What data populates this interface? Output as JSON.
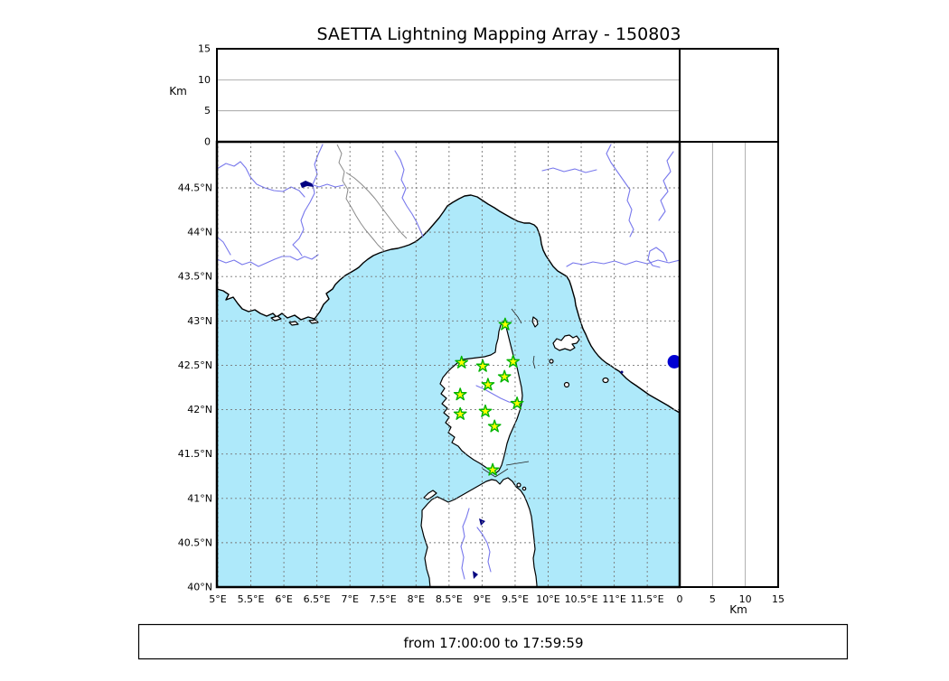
{
  "title": "SAETTA Lightning Mapping Array - 150803",
  "time_label": "from 17:00:00 to 17:59:59",
  "axes": {
    "altitude_left": {
      "label": "Km",
      "ticks": [
        "0",
        "5",
        "10",
        "15"
      ]
    },
    "altitude_bottom": {
      "label": "Km",
      "ticks": [
        "0",
        "5",
        "10",
        "15"
      ]
    },
    "latitude_ticks": [
      "44.5°N",
      "44°N",
      "43.5°N",
      "43°N",
      "42.5°N",
      "42°N",
      "41.5°N",
      "41°N",
      "40.5°N",
      "40°N"
    ],
    "longitude_ticks": [
      "5°E",
      "5.5°E",
      "6°E",
      "6.5°E",
      "7°E",
      "7.5°E",
      "8°E",
      "8.5°E",
      "9°E",
      "9.5°E",
      "10°E",
      "10.5°E",
      "11°E",
      "11.5°E"
    ]
  },
  "colors": {
    "sea": "#aee9fa",
    "river": "#7878ec",
    "border_line": "#8a8a8a",
    "grid": "#777777",
    "station_fill": "#ffff00",
    "station_edge": "#00b400",
    "source_dot": "#0000d2",
    "lake": "#000080"
  },
  "chart_data": {
    "type": "scatter",
    "title": "SAETTA Lightning Mapping Array - 150803",
    "annotation": "from 17:00:00 to 17:59:59",
    "panels": {
      "map": {
        "xlim": [
          5,
          12
        ],
        "ylim": [
          40,
          45
        ],
        "xticks": [
          5,
          5.5,
          6,
          6.5,
          7,
          7.5,
          8,
          8.5,
          9,
          9.5,
          10,
          10.5,
          11,
          11.5
        ],
        "yticks": [
          44.5,
          44,
          43.5,
          43,
          42.5,
          42,
          41.5,
          41,
          40.5,
          40
        ],
        "grid": true,
        "region": "Corsica / NW Mediterranean"
      },
      "altitude_top": {
        "ylabel": "Km",
        "ylim": [
          0,
          15
        ],
        "yticks": [
          0,
          5,
          10,
          15
        ]
      },
      "altitude_right": {
        "xlabel": "Km",
        "xlim": [
          0,
          15
        ],
        "xticks": [
          0,
          5,
          10,
          15
        ]
      }
    },
    "series": [
      {
        "name": "lma-stations",
        "marker": "star",
        "x": [
          9.35,
          8.69,
          9.01,
          9.47,
          9.34,
          9.09,
          8.67,
          9.05,
          8.67,
          9.53,
          9.19,
          9.16
        ],
        "y": [
          42.96,
          42.53,
          42.49,
          42.54,
          42.37,
          42.28,
          42.17,
          41.98,
          41.95,
          42.07,
          41.81,
          41.32
        ]
      },
      {
        "name": "source-point",
        "marker": "circle",
        "x": [
          11.91
        ],
        "y": [
          42.54
        ]
      }
    ]
  }
}
